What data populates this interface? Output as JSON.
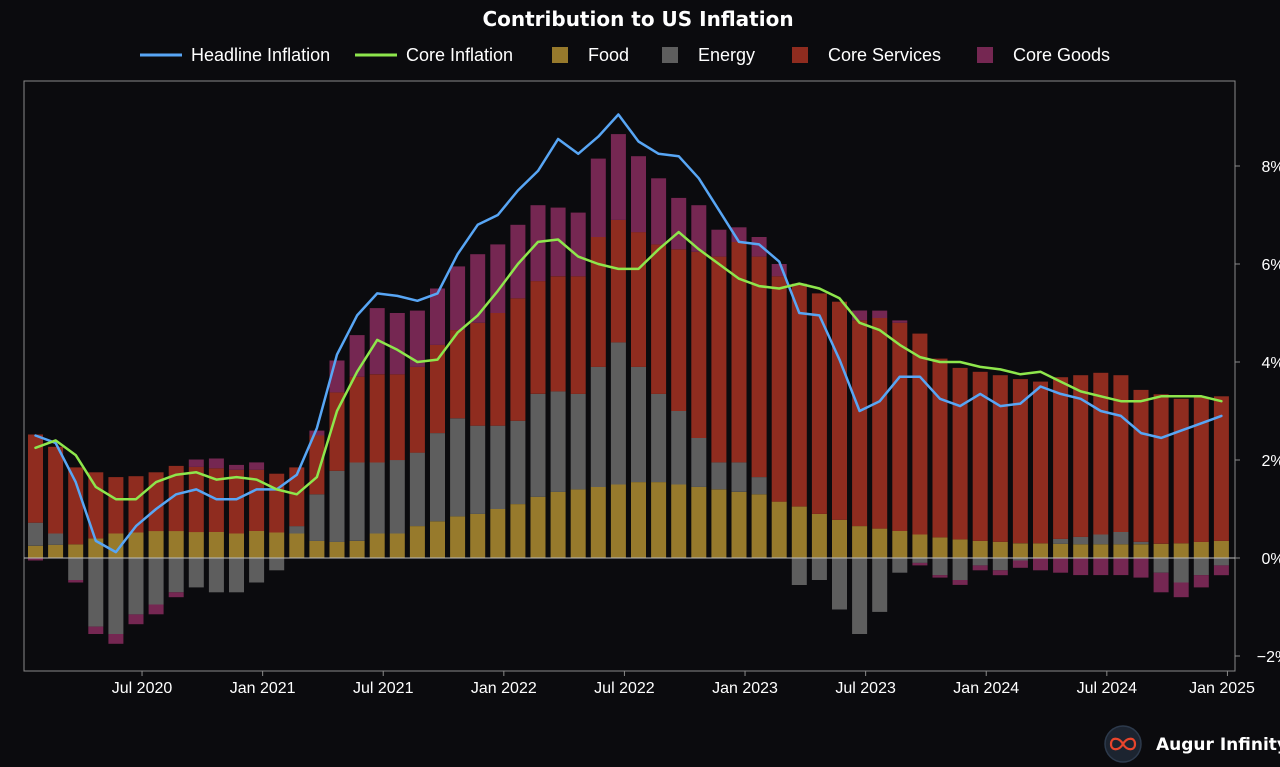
{
  "brand": {
    "name": "Augur Infinity",
    "logo_icon": "infinity-logo-icon"
  },
  "colors": {
    "background": "#0b0b0e",
    "headline": "#58a6f5",
    "core": "#8ee64c",
    "food": "#977a2c",
    "energy": "#5e5e5e",
    "core_services": "#8f2c1f",
    "core_goods": "#752752",
    "axis": "#8a8a8a",
    "zero_line": "#bdbdbd"
  },
  "chart_data": {
    "type": "bar",
    "title": "Contribution to US Inflation",
    "stacked": true,
    "x_start": "2020-01",
    "x": [
      "2020-01",
      "2020-02",
      "2020-03",
      "2020-04",
      "2020-05",
      "2020-06",
      "2020-07",
      "2020-08",
      "2020-09",
      "2020-10",
      "2020-11",
      "2020-12",
      "2021-01",
      "2021-02",
      "2021-03",
      "2021-04",
      "2021-05",
      "2021-06",
      "2021-07",
      "2021-08",
      "2021-09",
      "2021-10",
      "2021-11",
      "2021-12",
      "2022-01",
      "2022-02",
      "2022-03",
      "2022-04",
      "2022-05",
      "2022-06",
      "2022-07",
      "2022-08",
      "2022-09",
      "2022-10",
      "2022-11",
      "2022-12",
      "2023-01",
      "2023-02",
      "2023-03",
      "2023-04",
      "2023-05",
      "2023-06",
      "2023-07",
      "2023-08",
      "2023-09",
      "2023-10",
      "2023-11",
      "2023-12",
      "2024-01",
      "2024-02",
      "2024-03",
      "2024-04",
      "2024-05",
      "2024-06",
      "2024-07",
      "2024-08",
      "2024-09",
      "2024-10",
      "2024-11",
      "2024-12"
    ],
    "series": [
      {
        "name": "Food",
        "color": "#977a2c",
        "values": [
          0.25,
          0.27,
          0.28,
          0.4,
          0.5,
          0.52,
          0.55,
          0.55,
          0.53,
          0.53,
          0.5,
          0.55,
          0.52,
          0.5,
          0.35,
          0.33,
          0.35,
          0.5,
          0.5,
          0.65,
          0.75,
          0.85,
          0.9,
          1.0,
          1.1,
          1.25,
          1.35,
          1.4,
          1.45,
          1.5,
          1.55,
          1.55,
          1.5,
          1.45,
          1.4,
          1.35,
          1.3,
          1.15,
          1.05,
          0.9,
          0.78,
          0.65,
          0.6,
          0.55,
          0.48,
          0.42,
          0.38,
          0.35,
          0.33,
          0.3,
          0.3,
          0.29,
          0.28,
          0.28,
          0.28,
          0.28,
          0.29,
          0.3,
          0.33,
          0.35
        ]
      },
      {
        "name": "Energy",
        "color": "#5e5e5e",
        "values": [
          0.47,
          0.23,
          -0.45,
          -1.4,
          -1.55,
          -1.15,
          -0.95,
          -0.7,
          -0.6,
          -0.7,
          -0.7,
          -0.5,
          -0.25,
          0.15,
          0.95,
          1.45,
          1.6,
          1.45,
          1.5,
          1.5,
          1.8,
          2.0,
          1.8,
          1.7,
          1.7,
          2.1,
          2.05,
          1.95,
          2.45,
          2.9,
          2.35,
          1.8,
          1.5,
          1.0,
          0.55,
          0.6,
          0.35,
          0.0,
          -0.55,
          -0.45,
          -1.05,
          -1.55,
          -1.1,
          -0.3,
          -0.1,
          -0.35,
          -0.45,
          -0.15,
          -0.25,
          -0.05,
          0.0,
          0.1,
          0.15,
          0.2,
          0.25,
          0.05,
          -0.3,
          -0.5,
          -0.35,
          -0.15
        ]
      },
      {
        "name": "Core Services",
        "color": "#8f2c1f",
        "values": [
          1.8,
          1.77,
          1.57,
          1.35,
          1.15,
          1.15,
          1.2,
          1.33,
          1.33,
          1.3,
          1.3,
          1.25,
          1.2,
          1.2,
          1.2,
          1.6,
          1.75,
          1.8,
          1.75,
          1.75,
          1.8,
          1.8,
          2.1,
          2.3,
          2.5,
          2.3,
          2.35,
          2.4,
          2.65,
          2.5,
          2.75,
          3.05,
          3.3,
          3.8,
          4.2,
          4.5,
          4.5,
          4.6,
          4.55,
          4.5,
          4.45,
          4.2,
          4.3,
          4.25,
          4.1,
          3.65,
          3.5,
          3.45,
          3.4,
          3.35,
          3.3,
          3.3,
          3.3,
          3.3,
          3.2,
          3.1,
          3.05,
          2.95,
          2.95,
          2.95
        ]
      },
      {
        "name": "Core Goods",
        "color": "#752752",
        "values": [
          -0.05,
          0.0,
          -0.05,
          -0.15,
          -0.2,
          -0.2,
          -0.2,
          -0.1,
          0.15,
          0.2,
          0.1,
          0.15,
          0.0,
          0.0,
          0.1,
          0.65,
          0.85,
          1.35,
          1.25,
          1.15,
          1.15,
          1.3,
          1.4,
          1.4,
          1.5,
          1.55,
          1.4,
          1.3,
          1.6,
          1.75,
          1.55,
          1.35,
          1.05,
          0.95,
          0.55,
          0.3,
          0.4,
          0.25,
          0.0,
          0.0,
          0.0,
          0.2,
          0.15,
          0.05,
          -0.05,
          -0.05,
          -0.1,
          -0.1,
          -0.1,
          -0.15,
          -0.25,
          -0.3,
          -0.35,
          -0.35,
          -0.35,
          -0.4,
          -0.4,
          -0.3,
          -0.25,
          -0.2
        ]
      }
    ],
    "lines": [
      {
        "name": "Headline Inflation",
        "color": "#58a6f5",
        "values": [
          2.5,
          2.35,
          1.55,
          0.35,
          0.12,
          0.65,
          1.0,
          1.3,
          1.4,
          1.2,
          1.2,
          1.4,
          1.4,
          1.7,
          2.65,
          4.15,
          4.95,
          5.4,
          5.35,
          5.25,
          5.4,
          6.2,
          6.8,
          7.0,
          7.5,
          7.9,
          8.55,
          8.25,
          8.6,
          9.05,
          8.5,
          8.25,
          8.2,
          7.75,
          7.1,
          6.45,
          6.4,
          6.05,
          5.0,
          4.95,
          4.05,
          3.0,
          3.2,
          3.7,
          3.7,
          3.25,
          3.1,
          3.35,
          3.1,
          3.15,
          3.5,
          3.35,
          3.25,
          3.0,
          2.9,
          2.55,
          2.45,
          2.6,
          2.75,
          2.9
        ]
      },
      {
        "name": "Core Inflation",
        "color": "#8ee64c",
        "values": [
          2.25,
          2.4,
          2.1,
          1.45,
          1.2,
          1.2,
          1.55,
          1.7,
          1.75,
          1.6,
          1.65,
          1.6,
          1.4,
          1.3,
          1.65,
          3.0,
          3.8,
          4.45,
          4.25,
          4.0,
          4.05,
          4.6,
          4.95,
          5.45,
          6.0,
          6.45,
          6.5,
          6.15,
          6.0,
          5.9,
          5.9,
          6.3,
          6.65,
          6.3,
          6.0,
          5.7,
          5.55,
          5.5,
          5.6,
          5.5,
          5.3,
          4.8,
          4.65,
          4.35,
          4.1,
          4.0,
          4.0,
          3.9,
          3.85,
          3.75,
          3.8,
          3.6,
          3.4,
          3.3,
          3.2,
          3.2,
          3.3,
          3.3,
          3.3,
          3.2
        ]
      }
    ],
    "legend": [
      "Headline Inflation",
      "Core Inflation",
      "Food",
      "Energy",
      "Core Services",
      "Core Goods"
    ],
    "legend_position": "top",
    "y_axis_position": "right",
    "y_ticks": [
      -2,
      0,
      2,
      4,
      6,
      8
    ],
    "y_tick_labels": [
      "−2%",
      "0%",
      "2%",
      "4%",
      "6%",
      "8%"
    ],
    "ylim": [
      -2.3,
      9.5
    ],
    "x_tick_labels": [
      {
        "label": "Jul 2020",
        "index": 6
      },
      {
        "label": "Jan 2021",
        "index": 12
      },
      {
        "label": "Jul 2021",
        "index": 18
      },
      {
        "label": "Jan 2022",
        "index": 24
      },
      {
        "label": "Jul 2022",
        "index": 30
      },
      {
        "label": "Jan 2023",
        "index": 36
      },
      {
        "label": "Jul 2023",
        "index": 42
      },
      {
        "label": "Jan 2024",
        "index": 48
      },
      {
        "label": "Jul 2024",
        "index": 54
      },
      {
        "label": "Jan 2025",
        "index": 60
      }
    ],
    "xlabel": "",
    "ylabel": "",
    "grid": false
  }
}
